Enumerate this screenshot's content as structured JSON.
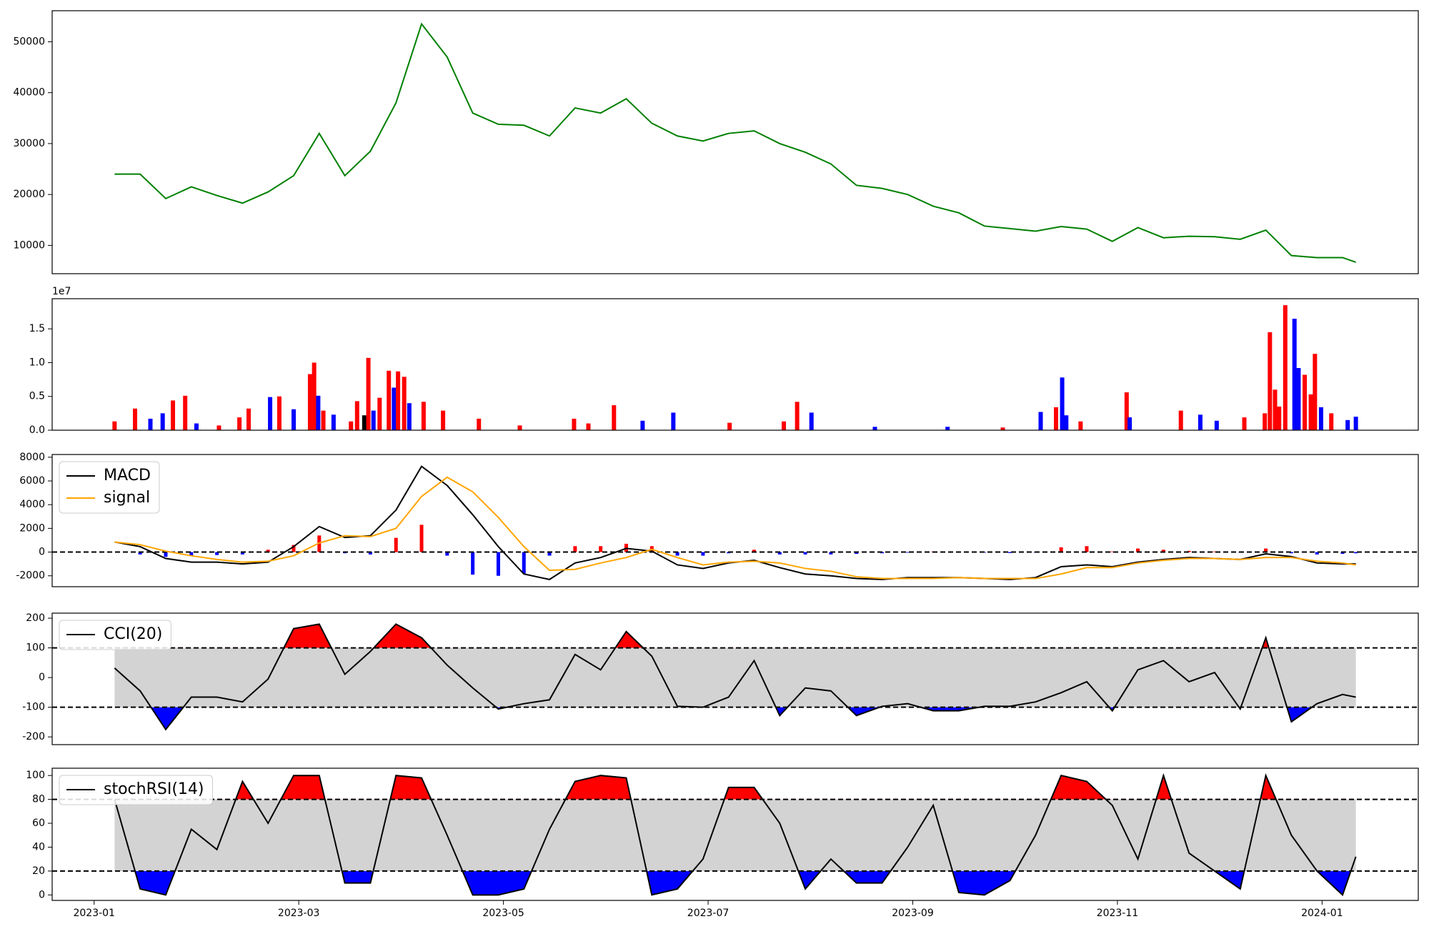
{
  "chart_data": [
    {
      "type": "line",
      "xlim": [
        -0.41,
        12.94
      ],
      "ylim": [
        4440,
        56100
      ],
      "yticks": [
        10000,
        20000,
        30000,
        40000,
        50000
      ],
      "x": [
        0.2,
        0.45,
        0.7,
        0.95,
        1.2,
        1.45,
        1.7,
        1.95,
        2.2,
        2.45,
        2.7,
        2.95,
        3.2,
        3.45,
        3.7,
        3.95,
        4.2,
        4.45,
        4.7,
        4.95,
        5.2,
        5.45,
        5.7,
        5.95,
        6.2,
        6.45,
        6.7,
        6.95,
        7.2,
        7.45,
        7.7,
        7.95,
        8.2,
        8.45,
        8.7,
        8.95,
        9.2,
        9.45,
        9.7,
        9.95,
        10.2,
        10.45,
        10.7,
        10.95,
        11.2,
        11.45,
        11.7,
        11.95,
        12.2,
        12.33
      ],
      "series": [
        {
          "color": "green",
          "values": [
            24000,
            24000,
            19200,
            21500,
            19800,
            18300,
            20500,
            23700,
            32000,
            23700,
            28500,
            38000,
            53500,
            47000,
            36000,
            33800,
            33600,
            31500,
            37000,
            36000,
            38800,
            34000,
            31500,
            30500,
            32000,
            32500,
            30000,
            28300,
            26000,
            21800,
            21200,
            20000,
            17700,
            16400,
            13800,
            13300,
            12800,
            13700,
            13200,
            10800,
            13500,
            11500,
            11800,
            11700,
            11200,
            13000,
            8000,
            7600,
            7600,
            6700
          ]
        }
      ]
    },
    {
      "type": "bar",
      "xlim": [
        -0.41,
        12.94
      ],
      "ylim": [
        0,
        19460000
      ],
      "y_offset_label": "1e7",
      "yticks": [
        {
          "value": 0,
          "label": "0.0"
        },
        {
          "value": 5000000,
          "label": "0.5"
        },
        {
          "value": 10000000,
          "label": "1.0"
        },
        {
          "value": 15000000,
          "label": "1.5"
        }
      ],
      "x": [
        0.2,
        0.4,
        0.55,
        0.67,
        0.77,
        0.89,
        1.0,
        1.22,
        1.42,
        1.51,
        1.72,
        1.81,
        1.95,
        2.11,
        2.15,
        2.19,
        2.24,
        2.34,
        2.51,
        2.57,
        2.64,
        2.68,
        2.73,
        2.79,
        2.88,
        2.93,
        2.97,
        3.03,
        3.08,
        3.22,
        3.41,
        3.76,
        4.16,
        4.69,
        4.83,
        5.08,
        5.36,
        5.66,
        6.21,
        6.74,
        6.87,
        7.01,
        7.63,
        8.34,
        8.88,
        9.25,
        9.4,
        9.46,
        9.5,
        9.64,
        10.09,
        10.12,
        10.62,
        10.81,
        10.97,
        11.24,
        11.44,
        11.49,
        11.54,
        11.58,
        11.64,
        11.73,
        11.77,
        11.83,
        11.89,
        11.93,
        11.99,
        12.09,
        12.25,
        12.33
      ],
      "series": [
        {
          "values": [
            1300000,
            3200000,
            1700000,
            2500000,
            4400000,
            5100000,
            1000000,
            700000,
            1900000,
            3200000,
            4900000,
            5000000,
            3100000,
            8300000,
            10000000,
            5100000,
            2900000,
            2300000,
            1300000,
            4300000,
            2200000,
            10700000,
            2900000,
            4800000,
            8800000,
            6300000,
            8700000,
            7900000,
            4000000,
            4200000,
            2900000,
            1700000,
            700000,
            1700000,
            1000000,
            3700000,
            1400000,
            2600000,
            1100000,
            1300000,
            4200000,
            2600000,
            500000,
            500000,
            400000,
            2700000,
            3400000,
            7800000,
            2200000,
            1300000,
            5600000,
            1900000,
            2900000,
            2300000,
            1400000,
            1900000,
            2500000,
            14500000,
            6000000,
            3500000,
            18500000,
            16500000,
            9200000,
            8200000,
            5300000,
            11300000,
            3400000,
            2500000,
            1500000,
            2000000
          ],
          "colors": [
            "red",
            "red",
            "blue",
            "blue",
            "red",
            "red",
            "blue",
            "red",
            "red",
            "red",
            "blue",
            "red",
            "blue",
            "red",
            "red",
            "blue",
            "red",
            "blue",
            "red",
            "red",
            "black",
            "red",
            "blue",
            "red",
            "red",
            "blue",
            "red",
            "red",
            "blue",
            "red",
            "red",
            "red",
            "red",
            "red",
            "red",
            "red",
            "blue",
            "blue",
            "red",
            "red",
            "red",
            "blue",
            "blue",
            "blue",
            "red",
            "blue",
            "red",
            "blue",
            "blue",
            "red",
            "red",
            "blue",
            "red",
            "blue",
            "blue",
            "red",
            "red",
            "red",
            "red",
            "red",
            "red",
            "blue",
            "blue",
            "red",
            "red",
            "red",
            "blue",
            "red",
            "blue",
            "blue"
          ]
        }
      ]
    },
    {
      "type": "macd",
      "xlim": [
        -0.41,
        12.94
      ],
      "ylim": [
        -2920,
        8230
      ],
      "yticks": [
        -2000,
        0,
        2000,
        4000,
        6000,
        8000
      ],
      "hlines": [
        0
      ],
      "legend": "upper left",
      "x": [
        0.2,
        0.45,
        0.7,
        0.95,
        1.2,
        1.45,
        1.7,
        1.95,
        2.2,
        2.45,
        2.7,
        2.95,
        3.2,
        3.45,
        3.7,
        3.95,
        4.2,
        4.45,
        4.7,
        4.95,
        5.2,
        5.45,
        5.7,
        5.95,
        6.2,
        6.45,
        6.7,
        6.95,
        7.2,
        7.45,
        7.7,
        7.95,
        8.2,
        8.45,
        8.7,
        8.95,
        9.2,
        9.45,
        9.7,
        9.95,
        10.2,
        10.45,
        10.7,
        10.95,
        11.2,
        11.45,
        11.7,
        11.95,
        12.2,
        12.33
      ],
      "series": [
        {
          "name": "MACD",
          "color": "black",
          "values": [
            850,
            460,
            -540,
            -850,
            -850,
            -1000,
            -850,
            460,
            2150,
            1230,
            1380,
            3540,
            7230,
            5620,
            3150,
            460,
            -1850,
            -2310,
            -920,
            -460,
            310,
            80,
            -1080,
            -1380,
            -920,
            -690,
            -1310,
            -1850,
            -2000,
            -2230,
            -2310,
            -2150,
            -2150,
            -2150,
            -2230,
            -2310,
            -2150,
            -1230,
            -1080,
            -1230,
            -850,
            -620,
            -460,
            -540,
            -620,
            -150,
            -380,
            -920,
            -1000,
            -1000
          ]
        },
        {
          "name": "signal",
          "color": "orange",
          "values": [
            850,
            620,
            80,
            -310,
            -620,
            -850,
            -770,
            -310,
            770,
            1380,
            1310,
            2000,
            4690,
            6310,
            5080,
            2920,
            460,
            -1540,
            -1460,
            -920,
            -460,
            230,
            -460,
            -1080,
            -850,
            -770,
            -920,
            -1380,
            -1620,
            -2080,
            -2230,
            -2230,
            -2230,
            -2150,
            -2230,
            -2230,
            -2230,
            -1850,
            -1310,
            -1310,
            -920,
            -690,
            -540,
            -540,
            -620,
            -460,
            -460,
            -770,
            -920,
            -1080
          ]
        },
        {
          "kind": "bar",
          "pos_color": "red",
          "neg_color": "blue",
          "values": [
            0,
            -200,
            -400,
            -300,
            -250,
            -200,
            200,
            600,
            1400,
            -100,
            -200,
            1200,
            2300,
            -300,
            -1900,
            -2000,
            -1800,
            -300,
            500,
            500,
            700,
            500,
            -300,
            -300,
            -100,
            200,
            -200,
            -200,
            -200,
            -150,
            -100,
            -50,
            50,
            -50,
            -50,
            -80,
            -50,
            400,
            500,
            50,
            300,
            200,
            100,
            50,
            -50,
            300,
            -100,
            -200,
            -150,
            -100
          ]
        }
      ]
    },
    {
      "type": "oscillator",
      "xlim": [
        -0.41,
        12.94
      ],
      "ylim": [
        -226,
        217
      ],
      "yticks": [
        -200,
        -100,
        0,
        100,
        200
      ],
      "hlines": [
        -100,
        100
      ],
      "legend": "upper left",
      "band_color": "#d3d3d3",
      "upper_color": "red",
      "lower_color": "blue",
      "x": [
        0.2,
        0.45,
        0.7,
        0.95,
        1.2,
        1.45,
        1.7,
        1.95,
        2.2,
        2.45,
        2.7,
        2.95,
        3.2,
        3.45,
        3.7,
        3.95,
        4.2,
        4.45,
        4.7,
        4.95,
        5.2,
        5.45,
        5.7,
        5.95,
        6.2,
        6.45,
        6.7,
        6.95,
        7.2,
        7.45,
        7.7,
        7.95,
        8.2,
        8.45,
        8.7,
        8.95,
        9.2,
        9.45,
        9.7,
        9.95,
        10.2,
        10.45,
        10.7,
        10.95,
        11.2,
        11.45,
        11.7,
        11.95,
        12.2,
        12.33
      ],
      "series": [
        {
          "name": "CCI(20)",
          "color": "black",
          "values": [
            32,
            -45,
            -175,
            -66,
            -66,
            -82,
            -5,
            165,
            180,
            11,
            88,
            180,
            134,
            42,
            -35,
            -106,
            -88,
            -75,
            78,
            26,
            155,
            72,
            -97,
            -100,
            -66,
            57,
            -128,
            -35,
            -45,
            -128,
            -97,
            -88,
            -112,
            -112,
            -97,
            -97,
            -82,
            -51,
            -14,
            -112,
            26,
            57,
            -14,
            17,
            -106,
            134,
            -149,
            -88,
            -57,
            -66
          ]
        }
      ]
    },
    {
      "type": "oscillator",
      "xlim": [
        -0.41,
        12.94
      ],
      "ylim": [
        -4.6,
        106.1
      ],
      "yticks": [
        0,
        20,
        40,
        60,
        80,
        100
      ],
      "hlines": [
        20,
        80
      ],
      "legend": "upper left",
      "band_color": "#d3d3d3",
      "upper_color": "red",
      "lower_color": "blue",
      "xticks": [
        {
          "value": 0,
          "label": "2023-01"
        },
        {
          "value": 2,
          "label": "2023-03"
        },
        {
          "value": 4,
          "label": "2023-05"
        },
        {
          "value": 6,
          "label": "2023-07"
        },
        {
          "value": 8,
          "label": "2023-09"
        },
        {
          "value": 10,
          "label": "2023-11"
        },
        {
          "value": 12,
          "label": "2024-01"
        }
      ],
      "x": [
        0.2,
        0.45,
        0.7,
        0.95,
        1.2,
        1.45,
        1.7,
        1.95,
        2.2,
        2.45,
        2.7,
        2.95,
        3.2,
        3.45,
        3.7,
        3.95,
        4.2,
        4.45,
        4.7,
        4.95,
        5.2,
        5.45,
        5.7,
        5.95,
        6.2,
        6.45,
        6.7,
        6.95,
        7.2,
        7.45,
        7.7,
        7.95,
        8.2,
        8.45,
        8.7,
        8.95,
        9.2,
        9.45,
        9.7,
        9.95,
        10.2,
        10.45,
        10.7,
        10.95,
        11.2,
        11.45,
        11.7,
        11.95,
        12.2,
        12.33
      ],
      "series": [
        {
          "name": "stochRSI(14)",
          "color": "black",
          "values": [
            80,
            5,
            0,
            55,
            38,
            95,
            60,
            100,
            100,
            10,
            10,
            100,
            98,
            50,
            0,
            0,
            5,
            55,
            95,
            100,
            98,
            0,
            5,
            30,
            90,
            90,
            60,
            5,
            30,
            10,
            10,
            40,
            75,
            2,
            0,
            12,
            50,
            100,
            95,
            75,
            30,
            100,
            35,
            20,
            5,
            100,
            50,
            20,
            0,
            32
          ]
        }
      ]
    }
  ]
}
